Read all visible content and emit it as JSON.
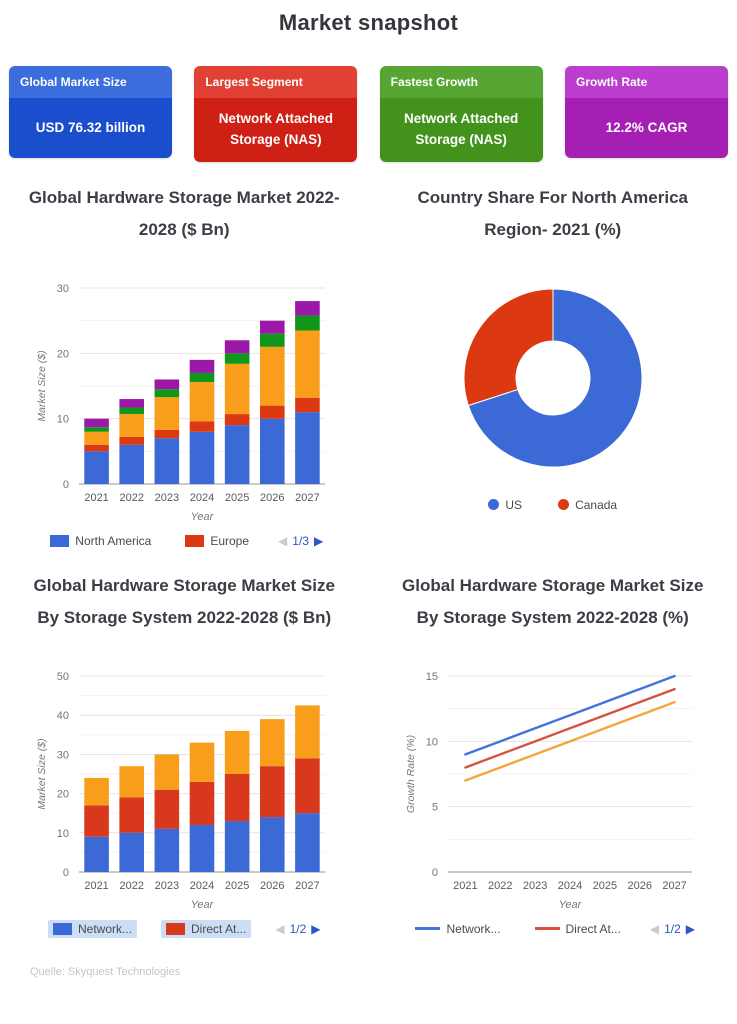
{
  "page": {
    "title": "Market snapshot",
    "source_note": "Quelle: Skyquest Technologies"
  },
  "cards": [
    {
      "label": "Global Market Size",
      "value": "USD 76.32 billion",
      "header_color": "#3B6EDC",
      "body_color": "#1A4ECC"
    },
    {
      "label": "Largest Segment",
      "value": "Network Attached Storage (NAS)",
      "header_color": "#E14034",
      "body_color": "#CE2015"
    },
    {
      "label": "Fastest Growth",
      "value": "Network Attached Storage (NAS)",
      "header_color": "#57A634",
      "body_color": "#42921C"
    },
    {
      "label": "Growth Rate",
      "value": "12.2% CAGR",
      "header_color": "#BB3ECF",
      "body_color": "#A51FB5"
    }
  ],
  "sections": [
    {
      "line1": "Global Hardware Storage Market 2022-",
      "line2": "2028 ($ Bn)"
    },
    {
      "line1": "Country Share For North America",
      "line2": "Region- 2021 (%)"
    },
    {
      "line1": "Global Hardware Storage Market Size",
      "line2": "By Storage System 2022-2028 ($ Bn)"
    },
    {
      "line1": "Global Hardware Storage Market Size",
      "line2": "By Storage System 2022-2028 (%)"
    }
  ],
  "chart_data": [
    {
      "type": "bar",
      "stacked": true,
      "title": "Global Hardware Storage Market 2022-2028 ($ Bn)",
      "categories": [
        "2021",
        "2022",
        "2023",
        "2024",
        "2025",
        "2026",
        "2027"
      ],
      "series": [
        {
          "name": "North America",
          "color": "#3B69D6",
          "values": [
            5,
            6,
            7,
            8,
            9,
            10,
            11
          ]
        },
        {
          "name": "Europe",
          "color": "#DC3912",
          "values": [
            1,
            1.2,
            1.3,
            1.6,
            1.7,
            2,
            2.2
          ]
        },
        {
          "name": "",
          "color": "#F89E1B",
          "values": [
            2,
            3.5,
            5,
            6,
            7.7,
            9,
            10.3
          ]
        },
        {
          "name": "",
          "color": "#109618",
          "values": [
            0.7,
            1,
            1.2,
            1.4,
            1.6,
            2,
            2.3
          ]
        },
        {
          "name": "",
          "color": "#9C18A8",
          "values": [
            1.3,
            1.3,
            1.5,
            2,
            2,
            2,
            2.2
          ]
        }
      ],
      "stack_totals": [
        10,
        13,
        16,
        19,
        22,
        25,
        28
      ],
      "xlabel": "Year",
      "ylabel": "Market Size ($)",
      "ylim": [
        0,
        30
      ],
      "yticks": [
        0,
        10,
        20,
        30
      ],
      "yticks_minor": [
        5,
        15,
        25
      ],
      "legend": {
        "swatch": "rect",
        "highlight": false,
        "items": [
          {
            "label": "North America",
            "color": "#3B69D6"
          },
          {
            "label": "Europe",
            "color": "#DC3912"
          }
        ],
        "pagination": "1/3"
      }
    },
    {
      "type": "pie",
      "donut": true,
      "title": "Country Share For North America Region- 2021 (%)",
      "labels": [
        "US",
        "Canada"
      ],
      "values": [
        70,
        30
      ],
      "colors": [
        "#3B69D6",
        "#DC3912"
      ],
      "legend": {
        "swatch": "dot",
        "highlight": false,
        "items": [
          {
            "label": "US",
            "color": "#3B69D6"
          },
          {
            "label": "Canada",
            "color": "#DC3912"
          }
        ],
        "pagination": ""
      }
    },
    {
      "type": "bar",
      "stacked": true,
      "title": "Global Hardware Storage Market Size By Storage System 2022-2028 ($ Bn)",
      "categories": [
        "2021",
        "2022",
        "2023",
        "2024",
        "2025",
        "2026",
        "2027"
      ],
      "series": [
        {
          "name": "Network...",
          "color": "#3B69D6",
          "values": [
            9,
            10,
            11,
            12,
            13,
            14,
            15
          ]
        },
        {
          "name": "Direct At...",
          "color": "#D8381C",
          "values": [
            8,
            9,
            10,
            11,
            12,
            13,
            14
          ]
        },
        {
          "name": "",
          "color": "#F89E1B",
          "values": [
            7,
            8,
            9,
            10,
            11,
            12,
            13.5
          ]
        }
      ],
      "stack_totals": [
        24,
        27,
        30,
        33,
        36,
        39,
        42.5
      ],
      "xlabel": "Year",
      "ylabel": "Market Size ($)",
      "ylim": [
        0,
        50
      ],
      "yticks": [
        0,
        10,
        20,
        30,
        40,
        50
      ],
      "yticks_minor": [
        5,
        15,
        25,
        35,
        45
      ],
      "legend": {
        "swatch": "rect",
        "highlight": true,
        "items": [
          {
            "label": "Network...",
            "color": "#3B69D6"
          },
          {
            "label": "Direct At...",
            "color": "#D8381C"
          }
        ],
        "pagination": "1/2"
      }
    },
    {
      "type": "line",
      "title": "Global Hardware Storage Market Size By Storage System 2022-2028 (%)",
      "categories": [
        "2021",
        "2022",
        "2023",
        "2024",
        "2025",
        "2026",
        "2027"
      ],
      "series": [
        {
          "name": "Network...",
          "color": "#4374D9",
          "values": [
            9,
            10,
            11,
            12,
            13,
            14,
            15
          ]
        },
        {
          "name": "Direct At...",
          "color": "#D65341",
          "values": [
            8,
            9,
            10,
            11,
            12,
            13,
            14
          ]
        },
        {
          "name": "",
          "color": "#F2A73B",
          "values": [
            7,
            8,
            9,
            10,
            11,
            12,
            13
          ]
        }
      ],
      "xlabel": "Year",
      "ylabel": "Growth Rate (%)",
      "ylim": [
        0,
        15
      ],
      "yticks": [
        0,
        5,
        10,
        15
      ],
      "yticks_minor": [
        2.5,
        7.5,
        12.5
      ],
      "legend": {
        "swatch": "line",
        "highlight": false,
        "items": [
          {
            "label": "Network...",
            "color": "#4374D9"
          },
          {
            "label": "Direct At...",
            "color": "#D65341"
          }
        ],
        "pagination": "1/2"
      }
    }
  ]
}
